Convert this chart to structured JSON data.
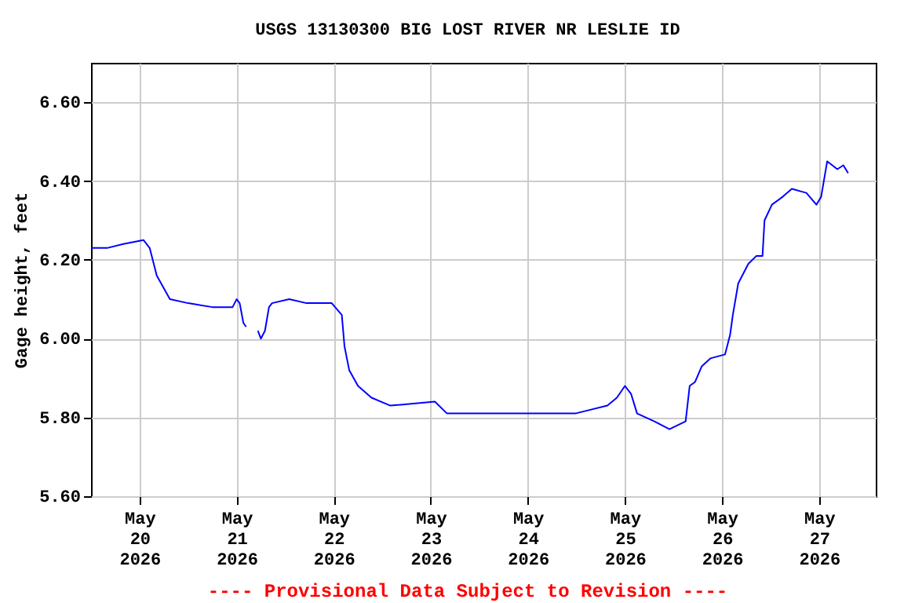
{
  "chart_data": {
    "type": "line",
    "title": "USGS 13130300 BIG LOST RIVER NR LESLIE ID",
    "ylabel": "Gage height, feet",
    "annotations": [
      "---- Provisional Data Subject to Revision ----"
    ],
    "xlim": [
      "2026-05-19T12:00",
      "2026-05-27T14:00"
    ],
    "xticks": [
      {
        "value": "2026-05-20",
        "label": "May\n20\n2026"
      },
      {
        "value": "2026-05-21",
        "label": "May\n21\n2026"
      },
      {
        "value": "2026-05-22",
        "label": "May\n22\n2026"
      },
      {
        "value": "2026-05-23",
        "label": "May\n23\n2026"
      },
      {
        "value": "2026-05-24",
        "label": "May\n24\n2026"
      },
      {
        "value": "2026-05-25",
        "label": "May\n25\n2026"
      },
      {
        "value": "2026-05-26",
        "label": "May\n26\n2026"
      },
      {
        "value": "2026-05-27",
        "label": "May\n27\n2026"
      }
    ],
    "ylim": [
      5.6,
      6.7
    ],
    "yticks": [
      {
        "value": 5.6,
        "label": "5.60"
      },
      {
        "value": 5.8,
        "label": "5.80"
      },
      {
        "value": 6.0,
        "label": "6.00"
      },
      {
        "value": 6.2,
        "label": "6.20"
      },
      {
        "value": 6.4,
        "label": "6.40"
      },
      {
        "value": 6.6,
        "label": "6.60"
      }
    ],
    "grid": true,
    "line_style": "solid",
    "marker": "none",
    "series": [
      {
        "color": "#0000ff",
        "x": [
          "2026-05-19T12:00",
          "2026-05-19T16:00",
          "2026-05-19T20:00",
          "2026-05-20T01:00",
          "2026-05-20T02:30",
          "2026-05-20T04:15",
          "2026-05-20T07:30",
          "2026-05-20T12:00",
          "2026-05-20T18:00",
          "2026-05-20T23:00",
          "2026-05-21T00:00",
          "2026-05-21T00:45",
          "2026-05-21T01:40",
          "2026-05-21T02:20",
          "2026-05-21T03:30",
          "2026-05-21T05:15",
          "2026-05-21T06:00",
          "2026-05-21T07:00",
          "2026-05-21T08:00",
          "2026-05-21T08:45",
          "2026-05-21T13:00",
          "2026-05-21T17:15",
          "2026-05-21T23:30",
          "2026-05-22T02:00",
          "2026-05-22T02:40",
          "2026-05-22T03:50",
          "2026-05-22T06:00",
          "2026-05-22T09:20",
          "2026-05-22T14:00",
          "2026-05-23T01:00",
          "2026-05-23T04:00",
          "2026-05-23T13:10",
          "2026-05-24T01:30",
          "2026-05-24T11:45",
          "2026-05-24T19:40",
          "2026-05-24T22:00",
          "2026-05-25T00:00",
          "2026-05-25T01:30",
          "2026-05-25T03:00",
          "2026-05-25T07:15",
          "2026-05-25T11:00",
          "2026-05-25T15:00",
          "2026-05-25T16:00",
          "2026-05-25T17:20",
          "2026-05-25T19:00",
          "2026-05-25T21:10",
          "2026-05-26T00:45",
          "2026-05-26T02:00",
          "2026-05-26T02:40",
          "2026-05-26T04:00",
          "2026-05-26T06:30",
          "2026-05-26T08:30",
          "2026-05-26T10:00",
          "2026-05-26T10:30",
          "2026-05-26T12:20",
          "2026-05-26T15:00",
          "2026-05-26T17:15",
          "2026-05-26T20:50",
          "2026-05-26T23:20",
          "2026-05-27T00:30",
          "2026-05-27T02:00",
          "2026-05-27T04:30",
          "2026-05-27T06:00",
          "2026-05-27T07:10"
        ],
        "values": [
          6.23,
          6.23,
          6.24,
          6.25,
          6.23,
          6.16,
          6.1,
          6.09,
          6.08,
          6.08,
          6.1,
          6.09,
          6.04,
          6.03,
          null,
          6.02,
          6.0,
          6.02,
          6.08,
          6.09,
          6.1,
          6.09,
          6.09,
          6.06,
          5.98,
          5.92,
          5.88,
          5.85,
          5.83,
          5.84,
          5.81,
          5.81,
          5.81,
          5.81,
          5.83,
          5.85,
          5.88,
          5.86,
          5.81,
          5.79,
          5.77,
          5.79,
          5.88,
          5.89,
          5.93,
          5.95,
          5.96,
          6.01,
          6.06,
          6.14,
          6.19,
          6.21,
          6.21,
          6.3,
          6.34,
          6.36,
          6.38,
          6.37,
          6.34,
          6.36,
          6.45,
          6.43,
          6.44,
          6.42
        ]
      }
    ]
  }
}
